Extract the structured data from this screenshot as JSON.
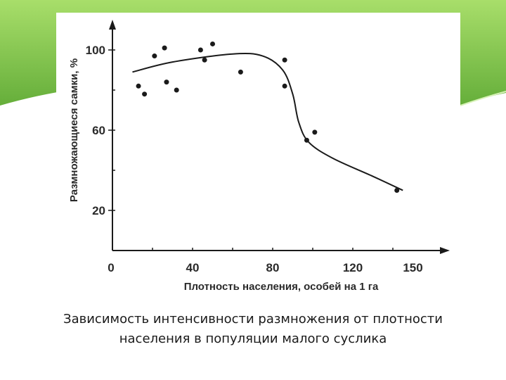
{
  "colors": {
    "band_light": "#a8de6a",
    "band_dark": "#4f9e2a",
    "ink": "#1a1a1a"
  },
  "caption": {
    "line1": "Зависимость интенсивности размножения от плотности",
    "line2": "населения в популяции малого суслика"
  },
  "chart_data": {
    "type": "scatter",
    "title": "",
    "xlabel": "Плотность населения, особей на 1 га",
    "ylabel": "Размножающиеся самки, %",
    "xlim": [
      0,
      160
    ],
    "ylim": [
      0,
      110
    ],
    "x_ticks": [
      0,
      40,
      80,
      120,
      150
    ],
    "y_ticks": [
      20,
      60,
      100
    ],
    "grid": false,
    "points": [
      {
        "x": 13,
        "y": 82
      },
      {
        "x": 16,
        "y": 78
      },
      {
        "x": 21,
        "y": 97
      },
      {
        "x": 26,
        "y": 101
      },
      {
        "x": 27,
        "y": 84
      },
      {
        "x": 32,
        "y": 80
      },
      {
        "x": 44,
        "y": 100
      },
      {
        "x": 46,
        "y": 95
      },
      {
        "x": 50,
        "y": 103
      },
      {
        "x": 64,
        "y": 89
      },
      {
        "x": 86,
        "y": 95
      },
      {
        "x": 86,
        "y": 82
      },
      {
        "x": 97,
        "y": 55
      },
      {
        "x": 101,
        "y": 59
      },
      {
        "x": 142,
        "y": 30
      }
    ],
    "trend_line": [
      {
        "x": 10,
        "y": 89
      },
      {
        "x": 30,
        "y": 94
      },
      {
        "x": 60,
        "y": 98
      },
      {
        "x": 75,
        "y": 97
      },
      {
        "x": 85,
        "y": 90
      },
      {
        "x": 90,
        "y": 78
      },
      {
        "x": 93,
        "y": 64
      },
      {
        "x": 98,
        "y": 54
      },
      {
        "x": 110,
        "y": 46
      },
      {
        "x": 130,
        "y": 37
      },
      {
        "x": 145,
        "y": 30
      }
    ]
  }
}
